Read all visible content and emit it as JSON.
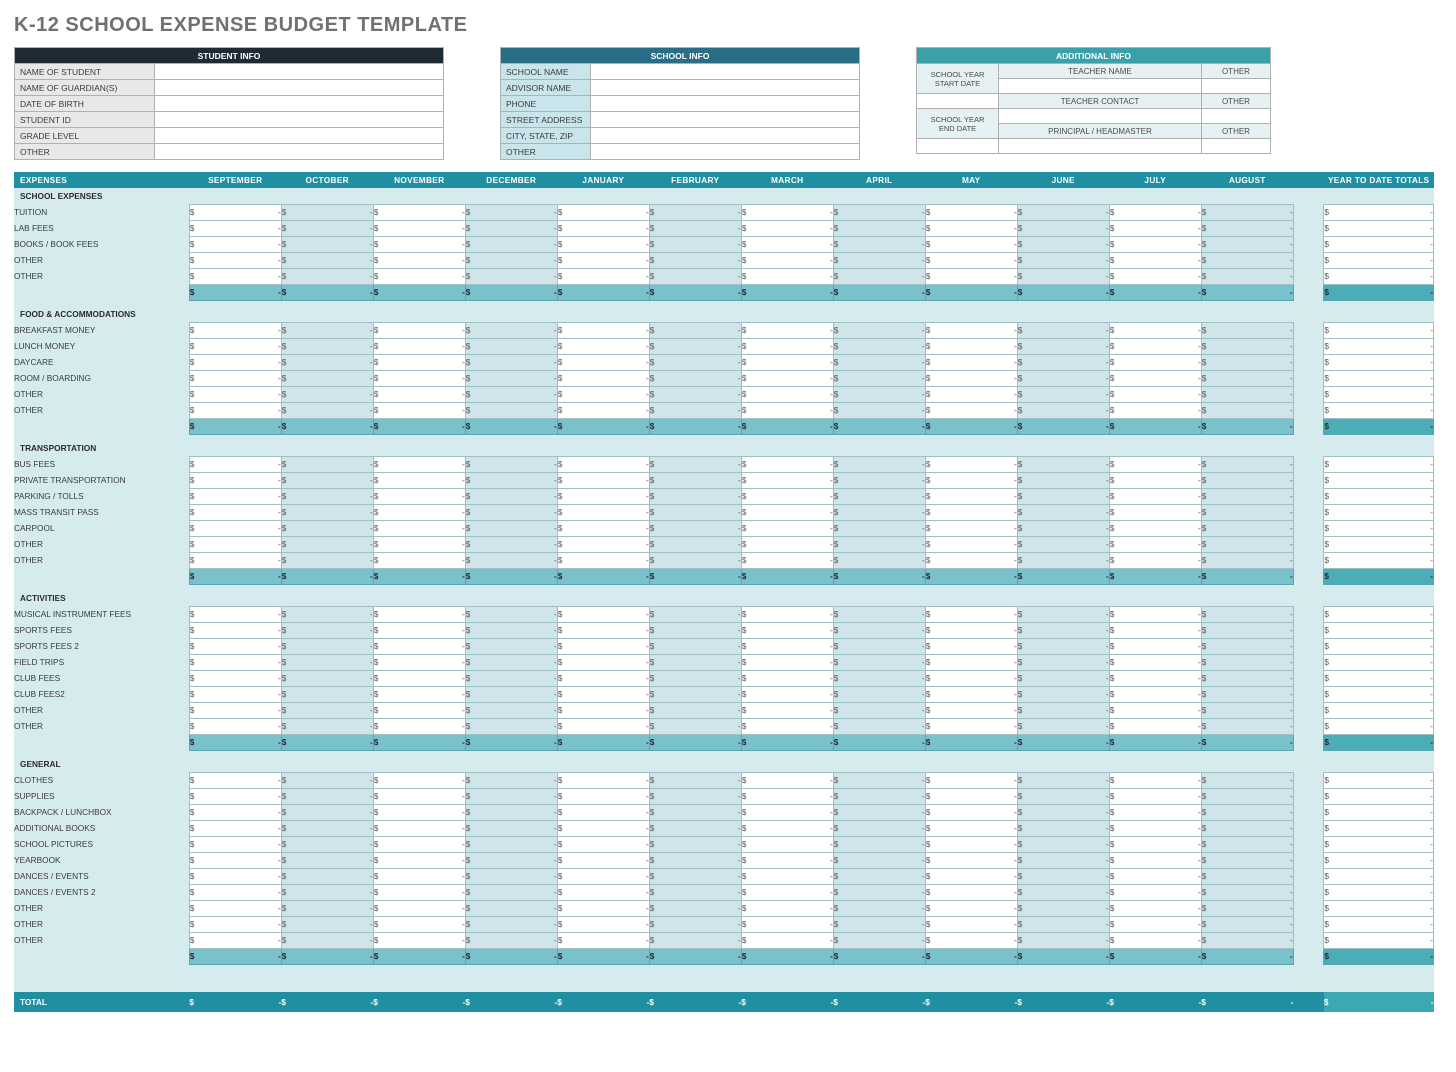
{
  "title": "K-12 SCHOOL EXPENSE BUDGET TEMPLATE",
  "info": {
    "student": {
      "header": "STUDENT INFO",
      "rows": [
        "NAME OF STUDENT",
        "NAME OF GUARDIAN(S)",
        "DATE OF BIRTH",
        "STUDENT ID",
        "GRADE LEVEL",
        "OTHER"
      ]
    },
    "school": {
      "header": "SCHOOL INFO",
      "rows": [
        "SCHOOL NAME",
        "ADVISOR NAME",
        "PHONE",
        "STREET ADDRESS",
        "CITY, STATE, ZIP",
        "OTHER"
      ]
    },
    "additional": {
      "header": "ADDITIONAL INFO",
      "side1": "SCHOOL YEAR START DATE",
      "side2": "SCHOOL YEAR END DATE",
      "cells": [
        "TEACHER NAME",
        "OTHER",
        "",
        "",
        "TEACHER CONTACT",
        "OTHER",
        "",
        "",
        "PRINCIPAL / HEADMASTER",
        "OTHER",
        "",
        ""
      ]
    }
  },
  "columns": {
    "label": "EXPENSES",
    "months": [
      "SEPTEMBER",
      "OCTOBER",
      "NOVEMBER",
      "DECEMBER",
      "JANUARY",
      "FEBRUARY",
      "MARCH",
      "APRIL",
      "MAY",
      "JUNE",
      "JULY",
      "AUGUST"
    ],
    "ytd": "YEAR TO DATE TOTALS"
  },
  "groups": [
    {
      "name": "SCHOOL EXPENSES",
      "items": [
        "TUITION",
        "LAB FEES",
        "BOOKS / BOOK FEES",
        "OTHER",
        "OTHER"
      ]
    },
    {
      "name": "FOOD & ACCOMMODATIONS",
      "items": [
        "BREAKFAST MONEY",
        "LUNCH MONEY",
        "DAYCARE",
        "ROOM / BOARDING",
        "OTHER",
        "OTHER"
      ]
    },
    {
      "name": "TRANSPORTATION",
      "items": [
        "BUS FEES",
        "PRIVATE TRANSPORTATION",
        "PARKING / TOLLS",
        "MASS TRANSIT PASS",
        "CARPOOL",
        "OTHER",
        "OTHER"
      ]
    },
    {
      "name": "ACTIVITIES",
      "items": [
        "MUSICAL INSTRUMENT FEES",
        "SPORTS FEES",
        "SPORTS FEES 2",
        "FIELD TRIPS",
        "CLUB FEES",
        "CLUB FEES2",
        "OTHER",
        "OTHER"
      ]
    },
    {
      "name": "GENERAL",
      "items": [
        "CLOTHES",
        "SUPPLIES",
        "BACKPACK / LUNCHBOX",
        "ADDITIONAL BOOKS",
        "SCHOOL PICTURES",
        "YEARBOOK",
        "DANCES / EVENTS",
        "DANCES / EVENTS 2",
        "OTHER",
        "OTHER",
        "OTHER"
      ]
    }
  ],
  "grand_total_label": "TOTAL",
  "currency": "$",
  "empty": "-",
  "colors": {
    "title": "#707070",
    "hdr_bg": "#1f8fa1",
    "section_bg": "#d6ebee",
    "cell_shade": "#cfe5ea",
    "subtotal_bg": "#79c2cc",
    "subtotal_ytd": "#4aadb7",
    "grand_ytd": "#3aa9b3",
    "student_hdr": "#1e2b34",
    "school_hdr": "#2a6d86",
    "addl_hdr": "#3aa1aa",
    "border": "#9fbfc5"
  }
}
